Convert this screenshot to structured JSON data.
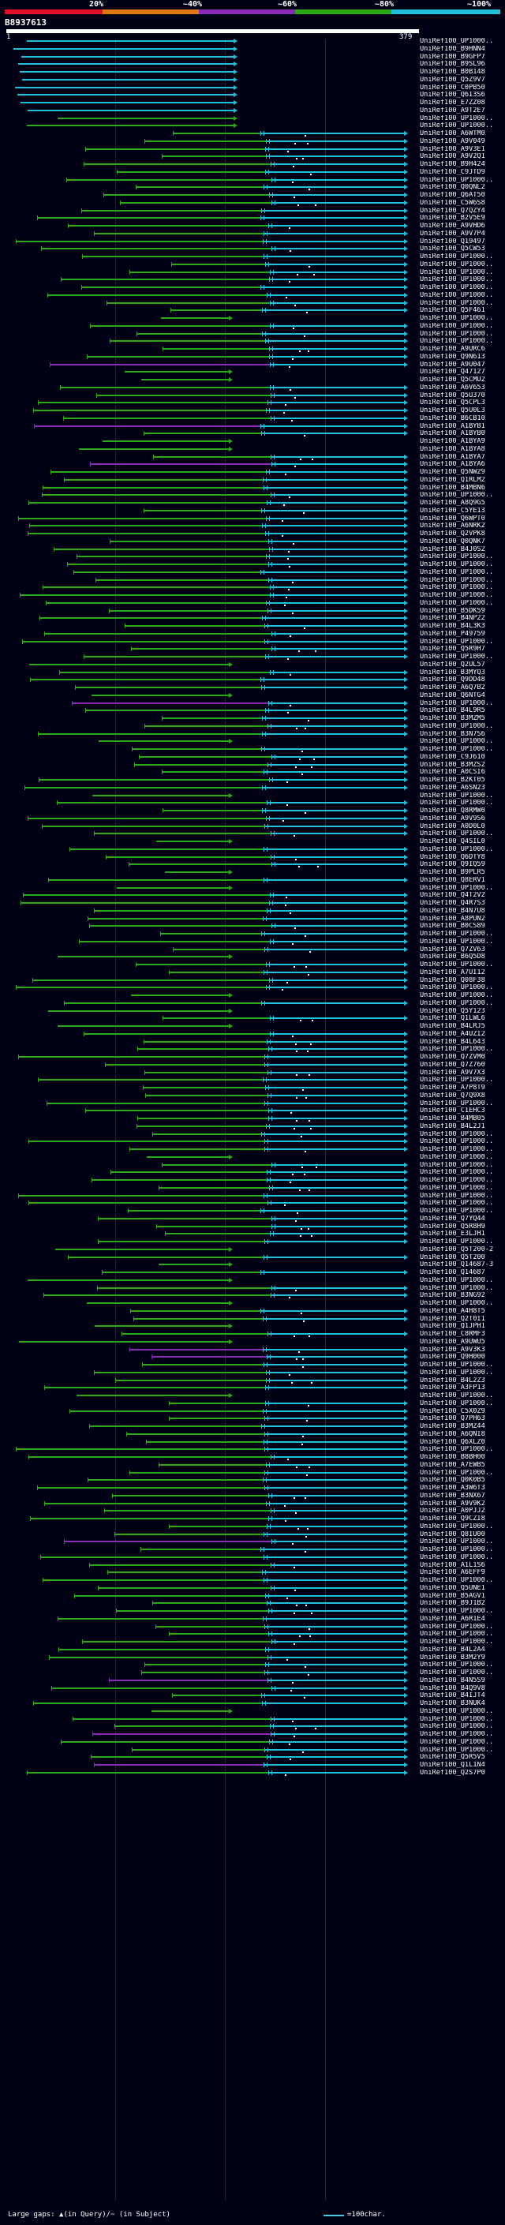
{
  "query": {
    "id": "B8937613",
    "scale_start": "1",
    "scale_end": "379"
  },
  "identity_scale": {
    "labels": [
      "20%",
      "~40%",
      "~60%",
      "~80%",
      "~100%"
    ],
    "colors": [
      "#e0102a",
      "#e07810",
      "#8a2ab8",
      "#2aa818",
      "#20c0d8"
    ]
  },
  "legend": {
    "large_gaps": "Large gaps: ▲(in Query)/~ (in Subject)",
    "length_unit": "=100char."
  },
  "hits": [
    "UniRef100_UP1000..",
    "UniRef100_B9HNN4",
    "UniRef100_B9GFP7",
    "UniRef100_B9SL96",
    "UniRef100_B0B148",
    "UniRef100_Q5Z9V7",
    "UniRef100_C0PB50",
    "UniRef100_Q6I3S6",
    "UniRef100_E7ZZ08",
    "UniRef100_A9T2E7",
    "UniRef100_UP1000..",
    "UniRef100_UP1000..",
    "UniRef100_A6WTM0",
    "UniRef100_A9V049",
    "UniRef100_A9V3E1",
    "UniRef100_A9V2Q1",
    "UniRef100_B9H424",
    "UniRef100_C9JTD9",
    "UniRef100_UP1000..",
    "UniRef100_Q0QNL2",
    "UniRef100_Q6AT50",
    "UniRef100_C5W6S8",
    "UniRef100_Q7QZY4",
    "UniRef100_B2V5E9",
    "UniRef100_A9VHD6",
    "UniRef100_A9V7P4",
    "UniRef100_Q19497",
    "UniRef100_Q5CW53",
    "UniRef100_UP1000..",
    "UniRef100_UP1000..",
    "UniRef100_UP1000..",
    "UniRef100_UP1000..",
    "UniRef100_UP1000..",
    "UniRef100_UP1000..",
    "UniRef100_UP1000..",
    "UniRef100_Q5F461",
    "UniRef100_UP1000..",
    "UniRef100_UP1000..",
    "UniRef100_UP1000..",
    "UniRef100_UP1000..",
    "UniRef100_A9URC6",
    "UniRef100_Q9N613",
    "UniRef100_A9U047",
    "UniRef100_Q47127",
    "UniRef100_Q5CMU2",
    "UniRef100_A6V653",
    "UniRef100_Q5U370",
    "UniRef100_Q5CPL3",
    "UniRef100_Q5U0L3",
    "UniRef100_B6CB10",
    "UniRef100_A1BYB1",
    "UniRef100_A1BYB0",
    "UniRef100_A1BYA9",
    "UniRef100_A1BYA8",
    "UniRef100_A1BYA7",
    "UniRef100_A1BYA6",
    "UniRef100_Q5NW29",
    "UniRef100_Q1RLM2",
    "UniRef100_B4MBN6",
    "UniRef100_UP1000..",
    "UniRef100_A8Q9G5",
    "UniRef100_C5YE13",
    "UniRef100_Q6WPT0",
    "UniRef100_A6NRK2",
    "UniRef100_Q2VPK8",
    "UniRef100_Q0QNK7",
    "UniRef100_B4J0S2",
    "UniRef100_UP1000..",
    "UniRef100_UP1000..",
    "UniRef100_UP1000..",
    "UniRef100_UP1000..",
    "UniRef100_UP1000..",
    "UniRef100_UP1000..",
    "UniRef100_UP1000..",
    "UniRef100_B5DK59",
    "UniRef100_B4NP22",
    "UniRef100_B4L3K3",
    "UniRef100_P49759",
    "UniRef100_UP1000..",
    "UniRef100_Q5R9H7",
    "UniRef100_UP1000..",
    "UniRef100_Q2UL57",
    "UniRef100_B3MYQ3",
    "UniRef100_Q9DD48",
    "UniRef100_A6Q7B2",
    "UniRef100_Q6NTG4",
    "UniRef100_UP1000..",
    "UniRef100_B4L9R5",
    "UniRef100_B3MZM5",
    "UniRef100_UP1000..",
    "UniRef100_B3N7S6",
    "UniRef100_UP1000..",
    "UniRef100_UP1000..",
    "UniRef100_C9J610",
    "UniRef100_B3MZS2",
    "UniRef100_A0CSI6",
    "UniRef100_B2KT05",
    "UniRef100_A6SN23",
    "UniRef100_UP1000..",
    "UniRef100_UP1000..",
    "UniRef100_Q8RMW0",
    "UniRef100_A9V9S6",
    "UniRef100_A0D0L0",
    "UniRef100_UP1000..",
    "UniRef100_Q4SIL0",
    "UniRef100_UP1000..",
    "UniRef100_Q6DTY8",
    "UniRef100_Q9IQ59",
    "UniRef100_B9PLR5",
    "UniRef100_Q8ERV1",
    "UniRef100_UP1000..",
    "UniRef100_Q4T2V2",
    "UniRef100_Q4R7S3",
    "UniRef100_B4N7U8",
    "UniRef100_A8PUN2",
    "UniRef100_B0CS89",
    "UniRef100_UP1000..",
    "UniRef100_UP1000..",
    "UniRef100_Q7ZV63",
    "UniRef100_B6Q5D8",
    "UniRef100_UP1000..",
    "UniRef100_A7UI12",
    "UniRef100_Q08F38",
    "UniRef100_UP1000..",
    "UniRef100_UP1000..",
    "UniRef100_UP1000..",
    "UniRef100_Q5Y123",
    "UniRef100_Q1LWL6",
    "UniRef100_B4LRJ5",
    "UniRef100_A4UZI2",
    "UniRef100_B4L643",
    "UniRef100_UP1000..",
    "UniRef100_Q7ZVM0",
    "UniRef100_Q7Z760",
    "UniRef100_A9V7X3",
    "UniRef100_UP1000..",
    "UniRef100_A7P8T9",
    "UniRef100_Q7Q9X8",
    "UniRef100_UP1000..",
    "UniRef100_C1EHC3",
    "UniRef100_B4MB05",
    "UniRef100_B4L2J1",
    "UniRef100_UP1000..",
    "UniRef100_UP1000..",
    "UniRef100_UP1000..",
    "UniRef100_UP1000..",
    "UniRef100_UP1000..",
    "UniRef100_UP1000..",
    "UniRef100_UP1000..",
    "UniRef100_UP1000..",
    "UniRef100_UP1000..",
    "UniRef100_UP1000..",
    "UniRef100_UP1000..",
    "UniRef100_Q7YQ44",
    "UniRef100_Q5R8H9",
    "UniRef100_E3LJH1",
    "UniRef100_UP1000..",
    "UniRef100_Q5T200-2",
    "UniRef100_Q5T200",
    "UniRef100_Q14687-3",
    "UniRef100_Q14687",
    "UniRef100_UP1000..",
    "UniRef100_UP1000..",
    "UniRef100_B3NG92",
    "UniRef100_UP1000..",
    "UniRef100_A4H8T5",
    "UniRef100_Q2T0I1",
    "UniRef100_Q1JPH1",
    "UniRef100_C8RMF3",
    "UniRef100_A9UWU5",
    "UniRef100_A9V3K3",
    "UniRef100_Q9H000",
    "UniRef100_UP1000..",
    "UniRef100_UP1000..",
    "UniRef100_B4L2Z3",
    "UniRef100_A3FP13",
    "UniRef100_UP1000..",
    "UniRef100_UP1000..",
    "UniRef100_C5X0Z9",
    "UniRef100_Q7PH63",
    "UniRef100_B3MZ44",
    "UniRef100_A6QNI8",
    "UniRef100_Q6XLZ0",
    "UniRef100_UP1000..",
    "UniRef100_B8BH00",
    "UniRef100_A7EWB5",
    "UniRef100_UP1000..",
    "UniRef100_Q0K0B5",
    "UniRef100_A3W6T3",
    "UniRef100_B3NX67",
    "UniRef100_A9V9K2",
    "UniRef100_A0PJJ2",
    "UniRef100_Q9CZI8",
    "UniRef100_UP1000..",
    "UniRef100_Q8IU00",
    "UniRef100_UP1000..",
    "UniRef100_UP1000..",
    "UniRef100_UP1000..",
    "UniRef100_A1L1S6",
    "UniRef100_A6EFF9",
    "UniRef100_UP1000..",
    "UniRef100_Q5UNE1",
    "UniRef100_B5AGV1",
    "UniRef100_B9J1B2",
    "UniRef100_UP1000..",
    "UniRef100_A6R1E4",
    "UniRef100_UP1000..",
    "UniRef100_UP1000..",
    "UniRef100_UP1000..",
    "UniRef100_B4L2A4",
    "UniRef100_B3M2Y9",
    "UniRef100_UP1000..",
    "UniRef100_UP1000..",
    "UniRef100_B4N5S9",
    "UniRef100_B4Q9V8",
    "UniRef100_B4IJT4",
    "UniRef100_B3NUK4",
    "UniRef100_UP1000..",
    "UniRef100_UP1000..",
    "UniRef100_UP1000..",
    "UniRef100_UP1000..",
    "UniRef100_UP1000..",
    "UniRef100_UP1000..",
    "UniRef100_Q5R5V5",
    "UniRef100_Q1L1N4",
    "UniRef100_Q2S7P0"
  ]
}
